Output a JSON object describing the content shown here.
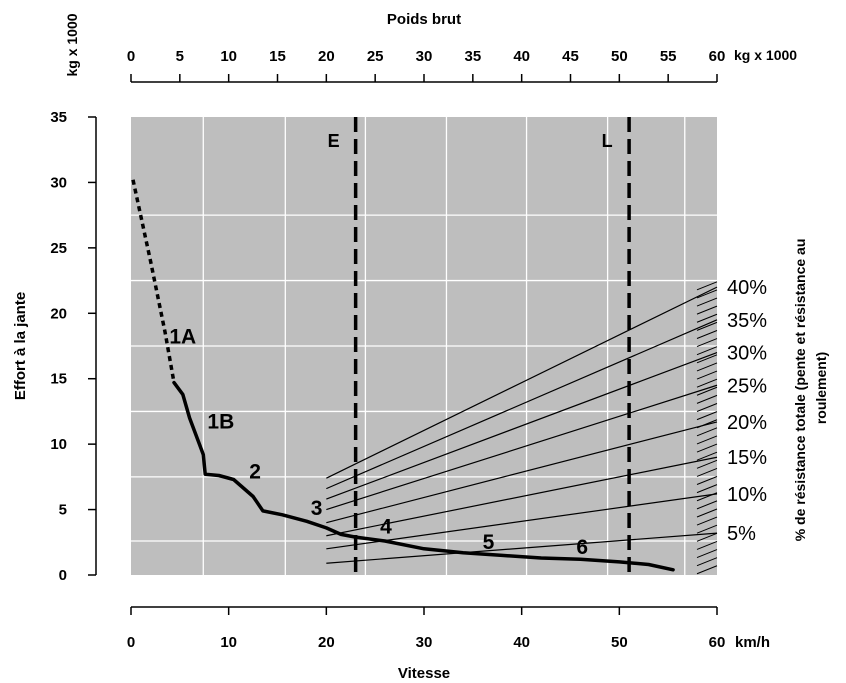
{
  "chart_data": {
    "type": "line",
    "top_axis": {
      "title": "Poids brut",
      "unit": "kg x 1000",
      "ticks": [
        "0",
        "5",
        "10",
        "15",
        "20",
        "25",
        "30",
        "35",
        "40",
        "45",
        "50",
        "55",
        "60"
      ]
    },
    "bottom_axis": {
      "title": "Vitesse",
      "unit": "km/h",
      "ticks": [
        "0",
        "10",
        "20",
        "30",
        "40",
        "50",
        "60"
      ],
      "xlim": [
        0,
        60
      ]
    },
    "left_axis": {
      "title": "Effort à la jante",
      "unit": "kg x 1000",
      "ticks": [
        "0",
        "5",
        "10",
        "15",
        "20",
        "25",
        "30",
        "35"
      ],
      "ylim": [
        0,
        35
      ]
    },
    "right_axis": {
      "title": "% de résistance totale (pente et résistance au roulement)"
    },
    "vertical_markers": [
      {
        "label": "E",
        "gross_weight": 23
      },
      {
        "label": "L",
        "gross_weight": 51
      }
    ],
    "rimpull_curve": {
      "dashed": {
        "x": [
          0.2,
          2.0,
          3.5,
          4.4
        ],
        "y": [
          30.2,
          24,
          18.5,
          14.7
        ]
      },
      "solid": {
        "x": [
          4.4,
          5.3,
          6.0,
          7.0,
          7.4,
          7.6,
          9.0,
          10.5,
          12.5,
          13.5,
          15.5,
          18.0,
          20.0,
          21.5,
          23.0,
          26.0,
          30.0,
          34.0,
          38.0,
          42.0,
          46.0,
          50.0,
          53.0,
          55.5
        ],
        "y": [
          14.7,
          13.8,
          12.0,
          10.0,
          9.2,
          7.7,
          7.6,
          7.3,
          6.0,
          4.9,
          4.6,
          4.1,
          3.6,
          3.1,
          2.9,
          2.6,
          2.0,
          1.7,
          1.5,
          1.3,
          1.2,
          1.0,
          0.8,
          0.4
        ]
      }
    },
    "gear_labels": [
      {
        "label": "1A",
        "x": 5.3,
        "y": 18.3
      },
      {
        "label": "1B",
        "x": 9.2,
        "y": 11.8
      },
      {
        "label": "2",
        "x": 12.7,
        "y": 8.0
      },
      {
        "label": "3",
        "x": 19.0,
        "y": 5.2
      },
      {
        "label": "4",
        "x": 26.1,
        "y": 3.8
      },
      {
        "label": "5",
        "x": 36.6,
        "y": 2.6
      },
      {
        "label": "6",
        "x": 46.2,
        "y": 2.2
      }
    ],
    "resistance_lines": [
      {
        "label": "5%",
        "y_start": 0.9,
        "y_end": 3.2
      },
      {
        "label": "10%",
        "y_start": 2.0,
        "y_end": 6.2
      },
      {
        "label": "15%",
        "y_start": 3.0,
        "y_end": 9.0
      },
      {
        "label": "20%",
        "y_start": 4.0,
        "y_end": 11.7
      },
      {
        "label": "25%",
        "y_start": 5.0,
        "y_end": 14.5
      },
      {
        "label": "30%",
        "y_start": 5.8,
        "y_end": 17.0
      },
      {
        "label": "35%",
        "y_start": 6.6,
        "y_end": 19.5
      },
      {
        "label": "40%",
        "y_start": 7.4,
        "y_end": 22.0
      }
    ],
    "resistance_line_x_start": 20,
    "grid": true,
    "colors": {
      "plot_bg": "#bebebe",
      "grid": "#ffffff",
      "ink": "#000000"
    }
  }
}
